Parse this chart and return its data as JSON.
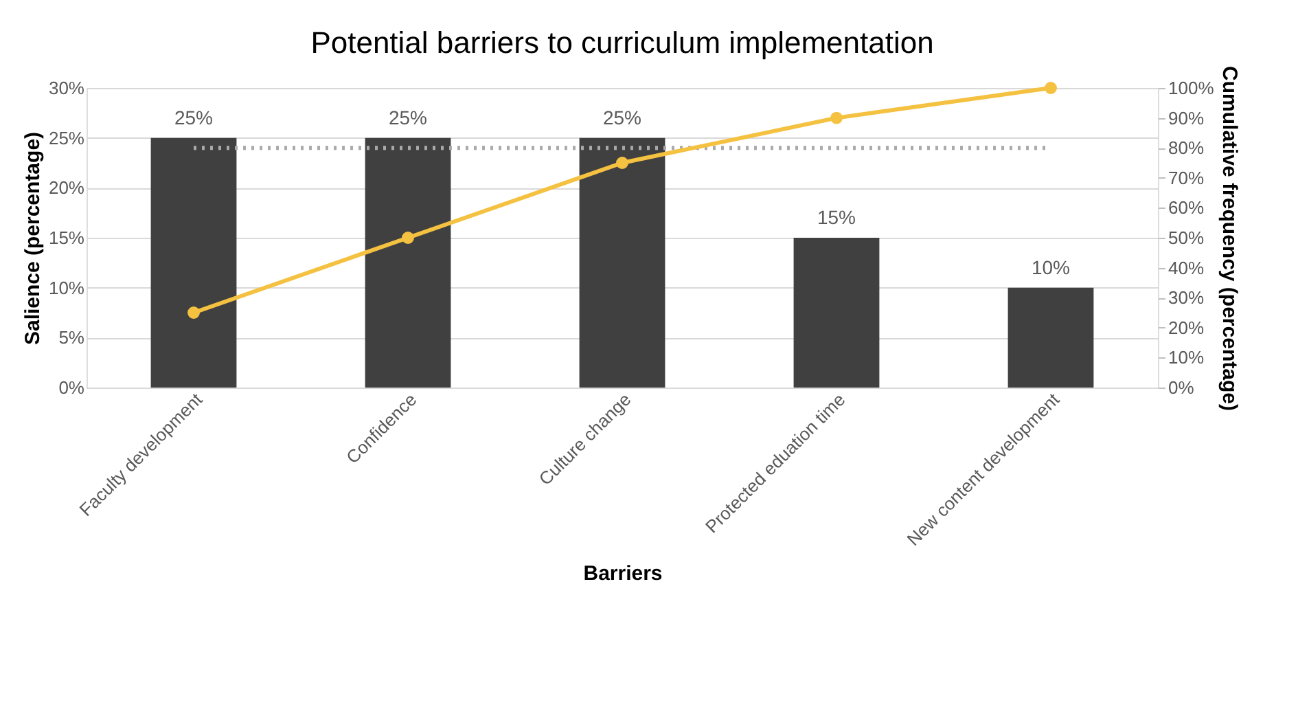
{
  "chart_data": {
    "type": "bar",
    "title": "Potential barriers to curriculum implementation",
    "xlabel": "Barriers",
    "ylabel": "Salience (percentage)",
    "y2label": "Cumulative frequency (percentage)",
    "categories": [
      "Faculty development",
      "Confidence",
      "Culture change",
      "Protected eduation time",
      "New content development"
    ],
    "series": [
      {
        "name": null,
        "color": "#404040",
        "values": [
          25,
          25,
          25,
          15,
          10
        ],
        "value_labels": [
          "25%",
          "25%",
          "25%",
          "15%",
          "10%"
        ]
      },
      {
        "name": null,
        "type": "line",
        "axis": "y2",
        "color": "#f4c141",
        "marker": "circle",
        "values": [
          25,
          50,
          75,
          90,
          100
        ]
      }
    ],
    "ylim": [
      0,
      30
    ],
    "yticks": [
      {
        "value": 0,
        "label": "0%"
      },
      {
        "value": 5,
        "label": "5%"
      },
      {
        "value": 10,
        "label": "10%"
      },
      {
        "value": 15,
        "label": "15%"
      },
      {
        "value": 20,
        "label": "20%"
      },
      {
        "value": 25,
        "label": "25%"
      },
      {
        "value": 30,
        "label": "30%"
      }
    ],
    "y2lim": [
      0,
      100
    ],
    "y2ticks": [
      {
        "value": 0,
        "label": "0%"
      },
      {
        "value": 10,
        "label": "10%"
      },
      {
        "value": 20,
        "label": "20%"
      },
      {
        "value": 30,
        "label": "30%"
      },
      {
        "value": 40,
        "label": "40%"
      },
      {
        "value": 50,
        "label": "50%"
      },
      {
        "value": 60,
        "label": "60%"
      },
      {
        "value": 70,
        "label": "70%"
      },
      {
        "value": 80,
        "label": "80%"
      },
      {
        "value": 90,
        "label": "90%"
      },
      {
        "value": 100,
        "label": "100%"
      }
    ],
    "ref_lines": [
      {
        "axis": "y2",
        "value": 80,
        "label": null,
        "color": "#aaaaaa",
        "line_style": "dotted"
      }
    ],
    "grid": "y"
  }
}
